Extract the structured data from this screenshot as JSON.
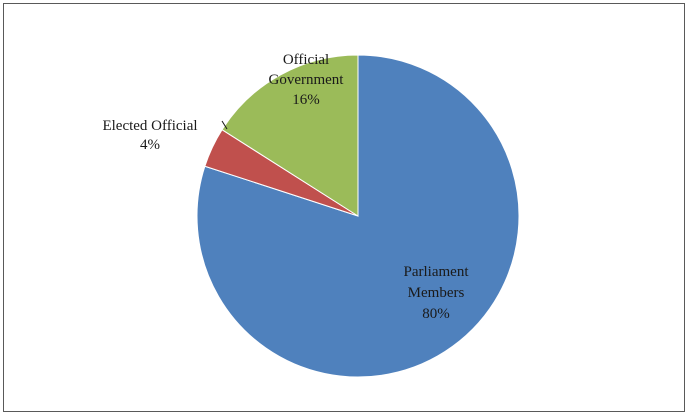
{
  "chart_data": {
    "type": "pie",
    "title": "",
    "slices": [
      {
        "label_lines": [
          "Parliament",
          "Members"
        ],
        "value": 80,
        "value_label": "80%",
        "color": "#4f81bd"
      },
      {
        "label_lines": [
          "Elected Official"
        ],
        "value": 4,
        "value_label": "4%",
        "color": "#c0504d"
      },
      {
        "label_lines": [
          "Official",
          "Government"
        ],
        "value": 16,
        "value_label": "16%",
        "color": "#9bbb59"
      }
    ],
    "legend": "none"
  }
}
